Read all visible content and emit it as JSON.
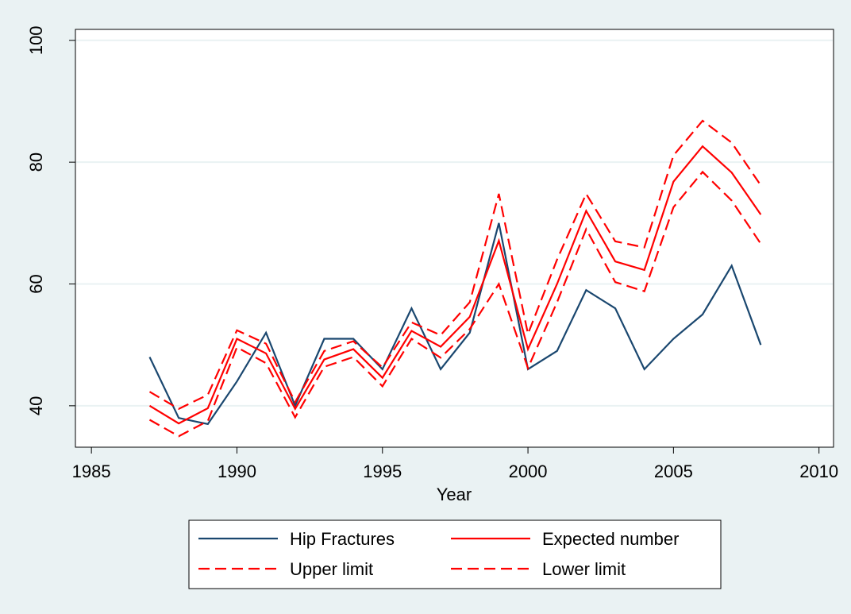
{
  "chart_data": {
    "type": "line",
    "x_label": "Year",
    "x": [
      1987,
      1988,
      1989,
      1990,
      1991,
      1992,
      1993,
      1994,
      1995,
      1996,
      1997,
      1998,
      1999,
      2000,
      2001,
      2002,
      2003,
      2004,
      2005,
      2006,
      2007,
      2008
    ],
    "series": [
      {
        "name": "Hip Fractures",
        "color": "#1a476f",
        "dashed": false,
        "values": [
          48,
          38,
          37,
          44,
          52,
          40,
          51,
          51,
          46,
          56,
          46,
          52,
          70,
          46,
          49,
          59,
          56,
          46,
          51,
          55,
          63,
          50
        ]
      },
      {
        "name": "Expected number",
        "color": "#ff0000",
        "dashed": false,
        "values": [
          40,
          37.1,
          39.6,
          51,
          48.6,
          39.5,
          47.6,
          49.3,
          44.6,
          52.3,
          49.7,
          54.6,
          67.1,
          49.3,
          60,
          72,
          63.7,
          62.3,
          76.8,
          82.6,
          78.3,
          71.4
        ]
      },
      {
        "name": "Upper limit",
        "color": "#ff0000",
        "dashed": true,
        "values": [
          42.3,
          39.5,
          41.8,
          52.4,
          50.2,
          40.6,
          49,
          50.6,
          46.3,
          53.7,
          51.6,
          57,
          74.8,
          51.8,
          64,
          74.8,
          67,
          66,
          81.1,
          86.8,
          83.2,
          76.2
        ]
      },
      {
        "name": "Lower limit",
        "color": "#ff0000",
        "dashed": true,
        "values": [
          37.7,
          35,
          37.5,
          49.6,
          47,
          38.1,
          46.4,
          48,
          43.2,
          51,
          47.9,
          52.6,
          60,
          46.2,
          57,
          69,
          60.3,
          58.8,
          72.6,
          78.4,
          73.7,
          66.6
        ]
      }
    ],
    "xlim": [
      1984.45,
      2010.5
    ],
    "xticks": [
      1985,
      1990,
      1995,
      2000,
      2005,
      2010
    ],
    "ylim": [
      33.2,
      101.8
    ],
    "yticks": [
      40,
      60,
      80,
      100
    ],
    "grid": true,
    "legend_position": "bottom"
  }
}
